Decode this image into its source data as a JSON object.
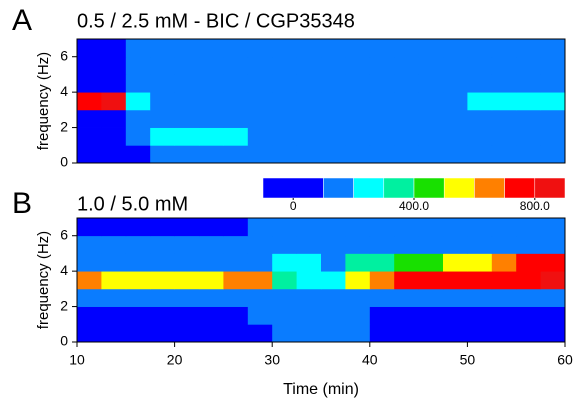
{
  "chart_data": [
    {
      "type": "heatmap",
      "panel_label": "A",
      "title": "0.5 / 2.5 mM - BIC / CGP35348",
      "ylabel": "frequency (Hz)",
      "xlim": [
        10,
        60
      ],
      "ylim": [
        0,
        7
      ],
      "yticks": [
        0,
        2,
        4,
        6
      ],
      "xbins": [
        10,
        12.5,
        15,
        17.5,
        20,
        22.5,
        25,
        27.5,
        30,
        32.5,
        35,
        37.5,
        40,
        42.5,
        45,
        47.5,
        50,
        52.5,
        55,
        57.5,
        60
      ],
      "ybins": [
        0,
        1,
        2,
        3,
        4,
        5,
        6,
        7
      ],
      "z": [
        [
          60,
          60,
          80,
          120,
          150,
          150,
          160,
          160,
          140,
          140,
          140,
          140,
          130,
          130,
          130,
          130,
          120,
          120,
          120,
          120
        ],
        [
          60,
          60,
          120,
          210,
          220,
          230,
          220,
          190,
          180,
          180,
          190,
          180,
          180,
          170,
          180,
          190,
          170,
          180,
          170,
          180
        ],
        [
          70,
          70,
          150,
          190,
          180,
          190,
          180,
          170,
          180,
          170,
          180,
          170,
          180,
          170,
          180,
          170,
          180,
          170,
          180,
          170
        ],
        [
          780,
          850,
          230,
          190,
          180,
          170,
          180,
          170,
          190,
          180,
          180,
          190,
          180,
          190,
          180,
          190,
          200,
          210,
          230,
          220
        ],
        [
          60,
          60,
          150,
          170,
          160,
          170,
          160,
          170,
          160,
          170,
          160,
          170,
          160,
          170,
          160,
          170,
          170,
          180,
          190,
          180
        ],
        [
          40,
          40,
          120,
          150,
          150,
          150,
          150,
          150,
          150,
          150,
          150,
          150,
          150,
          150,
          150,
          150,
          150,
          150,
          150,
          150
        ],
        [
          40,
          40,
          100,
          130,
          130,
          130,
          130,
          130,
          130,
          130,
          130,
          130,
          130,
          130,
          130,
          130,
          130,
          130,
          130,
          130
        ]
      ]
    },
    {
      "type": "heatmap",
      "panel_label": "B",
      "title": "1.0 / 5.0 mM",
      "ylabel": "frequency (Hz)",
      "xlabel": "Time (min)",
      "xlim": [
        10,
        60
      ],
      "ylim": [
        0,
        7
      ],
      "xticks": [
        10,
        20,
        30,
        40,
        50,
        60
      ],
      "yticks": [
        0,
        2,
        4,
        6
      ],
      "xbins": [
        10,
        12.5,
        15,
        17.5,
        20,
        22.5,
        25,
        27.5,
        30,
        32.5,
        35,
        37.5,
        40,
        42.5,
        45,
        47.5,
        50,
        52.5,
        55,
        57.5,
        60
      ],
      "ybins": [
        0,
        1,
        2,
        3,
        4,
        5,
        6,
        7
      ],
      "z": [
        [
          80,
          80,
          80,
          80,
          80,
          80,
          80,
          80,
          120,
          150,
          140,
          100,
          80,
          80,
          80,
          80,
          80,
          80,
          80,
          80
        ],
        [
          90,
          90,
          90,
          90,
          90,
          90,
          90,
          100,
          150,
          180,
          160,
          110,
          90,
          90,
          90,
          90,
          90,
          90,
          90,
          90
        ],
        [
          130,
          130,
          130,
          130,
          130,
          130,
          130,
          140,
          170,
          190,
          170,
          150,
          150,
          150,
          150,
          150,
          150,
          150,
          150,
          150
        ],
        [
          620,
          560,
          550,
          500,
          500,
          520,
          650,
          600,
          300,
          220,
          200,
          550,
          650,
          700,
          720,
          740,
          760,
          780,
          780,
          800
        ],
        [
          150,
          150,
          150,
          150,
          150,
          150,
          150,
          160,
          200,
          200,
          190,
          300,
          350,
          400,
          450,
          500,
          550,
          600,
          700,
          750
        ],
        [
          100,
          100,
          100,
          100,
          100,
          100,
          100,
          110,
          160,
          170,
          150,
          130,
          130,
          130,
          140,
          150,
          150,
          160,
          170,
          180
        ],
        [
          90,
          90,
          90,
          90,
          90,
          90,
          90,
          100,
          140,
          150,
          130,
          110,
          110,
          110,
          110,
          110,
          110,
          110,
          110,
          110
        ]
      ],
      "colorbar": {
        "lim": [
          -100,
          900
        ],
        "bounds": [
          -100,
          100,
          200,
          300,
          400,
          500,
          600,
          700,
          800,
          900
        ],
        "colors": [
          "#0000ff",
          "#0a7cff",
          "#00ffff",
          "#00f0a0",
          "#18e000",
          "#ffff00",
          "#ff8000",
          "#ff0000",
          "#f01010"
        ],
        "ticks": [
          0,
          {
            "value": 400,
            "label": "400.0"
          },
          {
            "value": 800,
            "label": "800.0"
          }
        ]
      }
    }
  ]
}
